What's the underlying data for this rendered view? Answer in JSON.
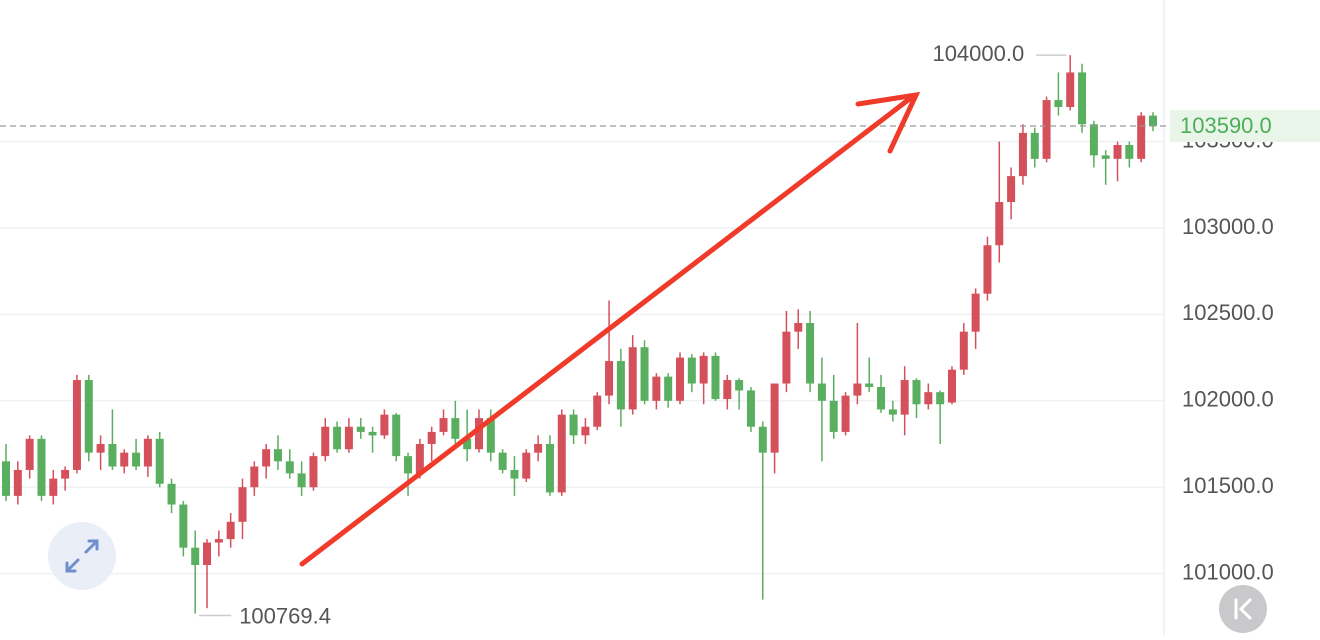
{
  "chart_data": {
    "type": "candlestick",
    "up_color": "#d4505a",
    "down_color": "#5aae5f",
    "ylim": [
      100645,
      104319
    ],
    "yticks": [
      {
        "value": 101000,
        "label": "101000.0"
      },
      {
        "value": 101500,
        "label": "101500.0"
      },
      {
        "value": 102000,
        "label": "102000.0"
      },
      {
        "value": 102500,
        "label": "102500.0"
      },
      {
        "value": 103000,
        "label": "103000.0"
      },
      {
        "value": 103500,
        "label": "103500.0"
      }
    ],
    "grid": true,
    "open": [
      101650,
      101450,
      101600,
      101780,
      101450,
      101550,
      101600,
      102120,
      101700,
      101750,
      101620,
      101700,
      101620,
      101780,
      101520,
      101400,
      101150,
      101050,
      101180,
      101200,
      101300,
      101500,
      101620,
      101720,
      101650,
      101580,
      101500,
      101680,
      101850,
      101720,
      101850,
      101820,
      101800,
      101920,
      101680,
      101580,
      101750,
      101820,
      101900,
      101780,
      101720,
      101900,
      101700,
      101600,
      101550,
      101700,
      101750,
      101470,
      101920,
      101800,
      101850,
      102030,
      102230,
      101950,
      102310,
      102000,
      102140,
      102000,
      102250,
      102100,
      102260,
      102010,
      102120,
      102060,
      101850,
      101700,
      102100,
      102400,
      102450,
      102100,
      102000,
      101820,
      102030,
      102100,
      102080,
      101950,
      101920,
      102120,
      101980,
      102050,
      101990,
      102180,
      102400,
      102620,
      102900,
      103150,
      103300,
      103550,
      103400,
      103740,
      103700,
      103900,
      103600,
      103420,
      103400,
      103480,
      103400,
      103650
    ],
    "high": [
      101750,
      101650,
      101800,
      101800,
      101600,
      101620,
      102150,
      102150,
      101800,
      101950,
      101720,
      101780,
      101800,
      101820,
      101550,
      101420,
      101250,
      101200,
      101250,
      101350,
      101550,
      101650,
      101750,
      101800,
      101720,
      101650,
      101700,
      101900,
      101880,
      101900,
      101900,
      101850,
      101950,
      101930,
      101700,
      101780,
      101850,
      101950,
      102000,
      101950,
      101950,
      101950,
      101720,
      101680,
      101720,
      101800,
      101800,
      101950,
      101950,
      101900,
      102050,
      102580,
      102300,
      102380,
      102350,
      102160,
      102160,
      102280,
      102270,
      102280,
      102280,
      102150,
      102130,
      102080,
      101880,
      102100,
      102520,
      102530,
      102520,
      102250,
      102150,
      102050,
      102450,
      102250,
      102150,
      102000,
      102200,
      102130,
      102100,
      102060,
      102200,
      102450,
      102650,
      102950,
      103500,
      103350,
      103600,
      103580,
      103760,
      103900,
      104000,
      103950,
      103620,
      103450,
      103500,
      103500,
      103670,
      103670
    ],
    "low": [
      101420,
      101400,
      101550,
      101420,
      101400,
      101480,
      101580,
      101650,
      101600,
      101600,
      101580,
      101600,
      101560,
      101500,
      101350,
      101100,
      100769.4,
      100800,
      101100,
      101150,
      101200,
      101450,
      101550,
      101600,
      101550,
      101450,
      101480,
      101650,
      101700,
      101700,
      101780,
      101700,
      101780,
      101650,
      101450,
      101550,
      101650,
      101800,
      101750,
      101650,
      101700,
      101650,
      101580,
      101450,
      101530,
      101650,
      101450,
      101450,
      101750,
      101750,
      101830,
      101980,
      101850,
      101920,
      101980,
      101950,
      101960,
      101980,
      102050,
      101980,
      102000,
      101950,
      101950,
      101820,
      100850,
      101580,
      102050,
      102300,
      102050,
      101650,
      101780,
      101800,
      101980,
      102050,
      101930,
      101880,
      101800,
      101900,
      101950,
      101750,
      101980,
      102150,
      102300,
      102580,
      102800,
      103050,
      103250,
      103350,
      103380,
      103650,
      103680,
      103550,
      103350,
      103250,
      103270,
      103350,
      103380,
      103560
    ],
    "close": [
      101450,
      101600,
      101780,
      101450,
      101550,
      101600,
      102120,
      101700,
      101750,
      101620,
      101700,
      101620,
      101780,
      101520,
      101400,
      101150,
      101050,
      101180,
      101200,
      101300,
      101500,
      101620,
      101720,
      101650,
      101580,
      101500,
      101680,
      101850,
      101720,
      101850,
      101820,
      101800,
      101920,
      101680,
      101580,
      101750,
      101820,
      101900,
      101780,
      101720,
      101900,
      101700,
      101600,
      101550,
      101700,
      101750,
      101470,
      101920,
      101800,
      101850,
      102030,
      102230,
      101950,
      102310,
      102000,
      102140,
      102000,
      102250,
      102100,
      102260,
      102010,
      102120,
      102060,
      101850,
      101700,
      102100,
      102400,
      102450,
      102100,
      102000,
      101820,
      102030,
      102100,
      102080,
      101950,
      101920,
      102120,
      101980,
      102050,
      101980,
      102180,
      102400,
      102620,
      102900,
      103150,
      103300,
      103550,
      103400,
      103740,
      103700,
      103900,
      103600,
      103420,
      103400,
      103480,
      103400,
      103650,
      103590
    ],
    "high_label": {
      "value": 104000,
      "label": "104000.0"
    },
    "low_label": {
      "value": 100769.4,
      "label": "100769.4"
    },
    "last_price": {
      "value": 103590,
      "label": "103590.0"
    }
  }
}
